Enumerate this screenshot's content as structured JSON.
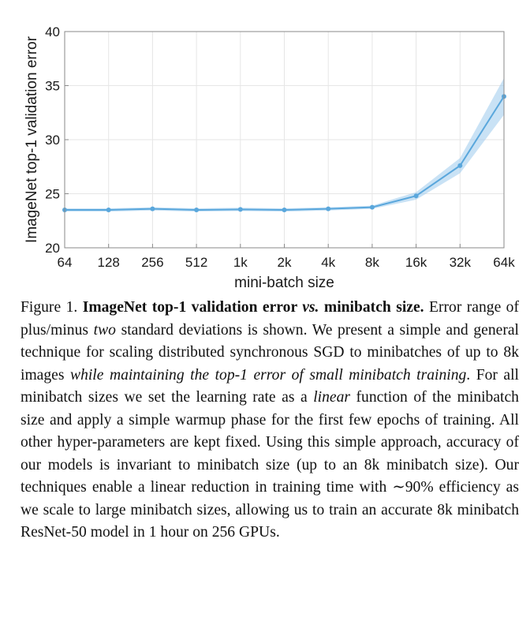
{
  "chart_data": {
    "type": "line",
    "categories": [
      "64",
      "128",
      "256",
      "512",
      "1k",
      "2k",
      "4k",
      "8k",
      "16k",
      "32k",
      "64k"
    ],
    "series": [
      {
        "name": "ImageNet top-1 validation error",
        "values": [
          23.5,
          23.5,
          23.6,
          23.5,
          23.55,
          23.5,
          23.6,
          23.75,
          24.8,
          27.6,
          34.0
        ],
        "band_lower": [
          23.35,
          23.35,
          23.45,
          23.35,
          23.4,
          23.35,
          23.45,
          23.6,
          24.45,
          26.9,
          32.3
        ],
        "band_upper": [
          23.65,
          23.65,
          23.75,
          23.65,
          23.7,
          23.65,
          23.75,
          23.9,
          25.15,
          28.3,
          35.7
        ]
      }
    ],
    "xlabel": "mini-batch size",
    "ylabel": "ImageNet top-1 validation error",
    "ylim": [
      20,
      40
    ],
    "yticks": [
      "20",
      "25",
      "30",
      "35",
      "40"
    ],
    "grid": true,
    "colors": {
      "line": "#5aa7dc",
      "band": "#9ccbec",
      "grid": "#e6e6e6",
      "axis": "#8a8a8a"
    }
  },
  "caption": {
    "label": "Figure 1.",
    "title": "ImageNet top-1 validation error",
    "title_vs": "vs.",
    "title_end": "minibatch size.",
    "s1_a": "Error range of plus/minus",
    "s1_em": "two",
    "s1_b": "standard deviations is shown. We present a simple and general technique for scaling distributed synchronous SGD to minibatches of up to 8k images",
    "s2_em": "while maintaining the top-1 error of small minibatch training",
    "s3_a": ". For all minibatch sizes we set the learning rate as a",
    "s3_em": "linear",
    "s3_b": "function of the minibatch size and apply a simple warmup phase for the first few epochs of training. All other hyper-parameters are kept fixed. Using this simple approach, accuracy of our models is invariant to minibatch size (up to an 8k minibatch size). Our techniques enable a linear reduction in training time with ∼90% efficiency as we scale to large minibatch sizes, allowing us to train an accurate 8k minibatch ResNet-50 model in 1 hour on 256 GPUs."
  }
}
